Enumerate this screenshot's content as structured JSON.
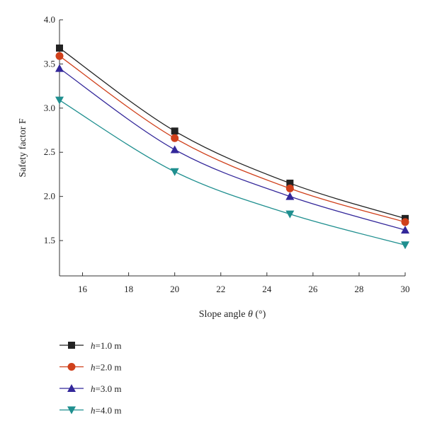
{
  "chart_data": {
    "type": "line",
    "title": "",
    "xlabel_prefix": "Slope angle ",
    "xlabel_symbol": "θ",
    "xlabel_suffix": " (°)",
    "ylabel": "Safety factor F",
    "xlim": [
      15,
      30
    ],
    "ylim": [
      1.1,
      4.0
    ],
    "xticks": [
      16,
      18,
      20,
      22,
      24,
      26,
      28,
      30
    ],
    "xtick_labels": [
      "16",
      "18",
      "20",
      "22",
      "24",
      "26",
      "28",
      "30"
    ],
    "yticks": [
      1.5,
      2.0,
      2.5,
      3.0,
      3.5,
      4.0
    ],
    "ytick_labels": [
      "1.5",
      "2.0",
      "2.5",
      "3.0",
      "3.5",
      "4.0"
    ],
    "x": [
      15,
      20,
      25,
      30
    ],
    "grid": false,
    "legend_position": "bottom-left below plot",
    "series": [
      {
        "name_var": "h",
        "name_rest": "=1.0 m",
        "marker": "square",
        "color": "#222222",
        "values": [
          3.68,
          2.74,
          2.15,
          1.75
        ]
      },
      {
        "name_var": "h",
        "name_rest": "=2.0 m",
        "marker": "circle",
        "color": "#d0401b",
        "values": [
          3.59,
          2.66,
          2.09,
          1.71
        ]
      },
      {
        "name_var": "h",
        "name_rest": "=3.0 m",
        "marker": "triangle-up",
        "color": "#33279a",
        "values": [
          3.45,
          2.53,
          2.0,
          1.62
        ]
      },
      {
        "name_var": "h",
        "name_rest": "=4.0 m",
        "marker": "triangle-down",
        "color": "#1f8f8f",
        "values": [
          3.09,
          2.28,
          1.8,
          1.45
        ]
      }
    ]
  }
}
